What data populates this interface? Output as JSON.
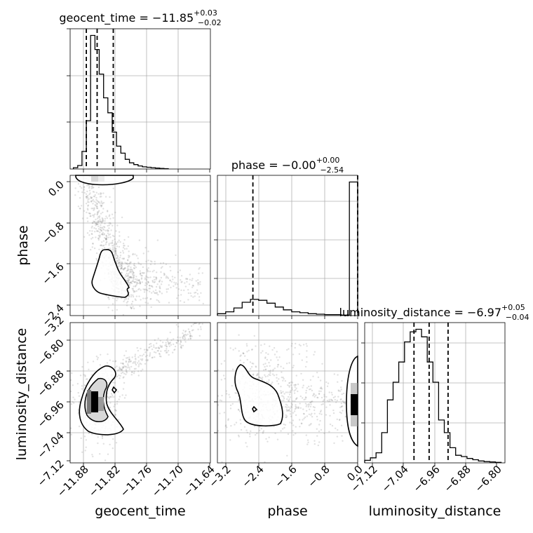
{
  "figure": {
    "parameters": [
      "geocent_time",
      "phase",
      "luminosity_distance"
    ]
  },
  "chart_data": [
    {
      "type": "histogram",
      "panel": "geocent_time",
      "title": {
        "base": "geocent_time = −11.85",
        "sup": "+0.03",
        "sub": "−0.02"
      },
      "xlim": [
        -11.9,
        -11.64
      ],
      "xticks": [
        -11.88,
        -11.82,
        -11.76,
        -11.7,
        -11.64
      ],
      "bins": [
        -11.894,
        -11.886,
        -11.878,
        -11.87,
        -11.862,
        -11.854,
        -11.846,
        -11.838,
        -11.83,
        -11.822,
        -11.814,
        -11.806,
        -11.798,
        -11.79,
        -11.782,
        -11.774,
        -11.766,
        -11.758,
        -11.75,
        -11.742,
        -11.734,
        -11.726,
        -11.718
      ],
      "counts": [
        1.5,
        4,
        20,
        55,
        152,
        136,
        108,
        81,
        64,
        42,
        26,
        18,
        11,
        7,
        5,
        3.5,
        2.5,
        2,
        1.5,
        1,
        0.7,
        0.4
      ],
      "quantiles": [
        -11.87,
        -11.85,
        -11.82
      ]
    },
    {
      "type": "scatter2d",
      "panel": "phase_vs_geocent_time",
      "xlim": [
        -11.9,
        -11.64
      ],
      "ylim": [
        -3.4,
        0.0
      ],
      "yticks": [
        0.0,
        -0.8,
        -1.6,
        -2.4,
        -3.2
      ],
      "ylabel": "phase"
    },
    {
      "type": "histogram",
      "panel": "phase",
      "title": {
        "base": "phase = −0.00",
        "sup": "+0.00",
        "sub": "−2.54"
      },
      "xlim": [
        -3.4,
        0.0
      ],
      "xticks": [
        -3.2,
        -2.4,
        -1.6,
        -0.8,
        0.0
      ],
      "bins": [
        -3.4,
        -3.2,
        -3.0,
        -2.8,
        -2.6,
        -2.4,
        -2.2,
        -2.0,
        -1.8,
        -1.6,
        -1.4,
        -1.2,
        -1.0,
        -0.8,
        -0.6,
        -0.4,
        -0.2,
        0.0
      ],
      "counts": [
        2,
        4,
        8,
        14,
        17,
        16,
        13,
        9,
        6,
        4,
        3,
        2,
        1.5,
        1,
        1,
        0.5,
        140
      ],
      "quantiles": [
        -2.54,
        0.0
      ]
    },
    {
      "type": "scatter2d",
      "panel": "luminosity_distance_vs_geocent_time",
      "xlim": [
        -11.9,
        -11.64
      ],
      "ylim": [
        -7.13,
        -6.77
      ],
      "yticks": [
        -6.8,
        -6.88,
        -6.96,
        -7.04,
        -7.12
      ],
      "xticks": [
        -11.88,
        -11.82,
        -11.76,
        -11.7,
        -11.64
      ],
      "xlabel": "geocent_time",
      "ylabel": "luminosity_distance"
    },
    {
      "type": "scatter2d",
      "panel": "luminosity_distance_vs_phase",
      "xlim": [
        -3.4,
        0.0
      ],
      "ylim": [
        -7.13,
        -6.77
      ],
      "xticks": [
        -3.2,
        -2.4,
        -1.6,
        -0.8,
        0.0
      ],
      "xlabel": "phase"
    },
    {
      "type": "histogram",
      "panel": "luminosity_distance",
      "title": {
        "base": "luminosity_distance = −6.97",
        "sup": "+0.05",
        "sub": "−0.04"
      },
      "xlim": [
        -7.14,
        -6.77
      ],
      "xticks": [
        -7.12,
        -7.04,
        -6.96,
        -6.88,
        -6.8
      ],
      "xlabel": "luminosity_distance",
      "bins": [
        -7.14,
        -7.125,
        -7.11,
        -7.095,
        -7.08,
        -7.065,
        -7.05,
        -7.035,
        -7.02,
        -7.005,
        -6.99,
        -6.975,
        -6.96,
        -6.945,
        -6.93,
        -6.915,
        -6.9,
        -6.885,
        -6.87,
        -6.855,
        -6.84,
        -6.825,
        -6.81,
        -6.795,
        -6.78
      ],
      "counts": [
        2,
        4,
        8,
        24,
        50,
        64,
        80,
        96,
        104,
        106,
        100,
        80,
        64,
        34,
        24,
        12,
        6,
        5,
        3.5,
        2.5,
        1.5,
        1,
        0.7,
        0.4
      ],
      "quantiles": [
        -7.01,
        -6.97,
        -6.92
      ]
    }
  ],
  "ticklabels": {
    "col0_x": [
      "−11.88",
      "−11.82",
      "−11.76",
      "−11.70",
      "−11.64"
    ],
    "col1_x": [
      "−3.2",
      "−2.4",
      "−1.6",
      "−0.8",
      "0.0"
    ],
    "col2_x": [
      "−7.12",
      "−7.04",
      "−6.96",
      "−6.88",
      "−6.80"
    ],
    "row1_y": [
      "0.0",
      "−0.8",
      "−1.6",
      "−2.4",
      "−3.2"
    ],
    "row2_y": [
      "−6.80",
      "−6.88",
      "−6.96",
      "−7.04",
      "−7.12"
    ]
  },
  "labels": {
    "x_col0": "geocent_time",
    "x_col1": "phase",
    "x_col2": "luminosity_distance",
    "y_row1": "phase",
    "y_row2": "luminosity_distance"
  },
  "colors": {
    "line": "#000000",
    "grid": "#b0b0b0",
    "scatter": "#888888"
  }
}
